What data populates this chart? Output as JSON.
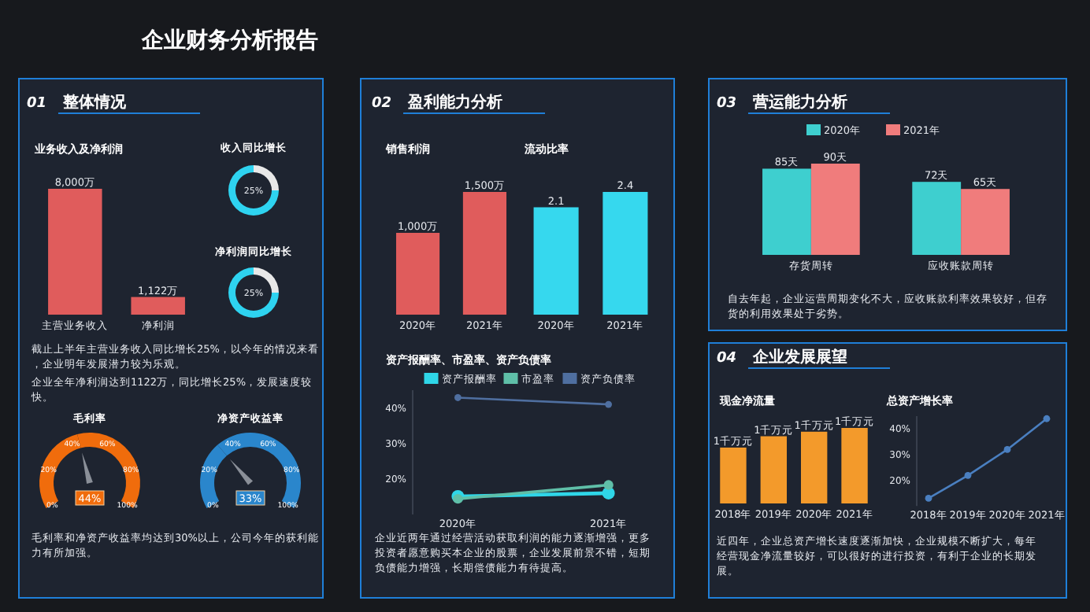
{
  "chart_data": [
    {
      "type": "other",
      "title": "企业财务分析报告"
    },
    {
      "type": "bar",
      "title": "业务收入及净利润",
      "categories": [
        "主营业务收入",
        "净利润"
      ],
      "values": [
        8000,
        1122
      ],
      "value_labels": [
        "8,000万",
        "1,122万"
      ],
      "color": "#e05c5c",
      "annotations": [
        "01",
        "整体情况",
        "截止上半年主营业务收入同比增长25%，以今年的情况来看，企业明年发展潜力较为乐观。",
        "企业全年净利润达到1122万，同比增长25%，发展速度较快。"
      ]
    },
    {
      "type": "donut",
      "title": "收入同比增长",
      "categories": [
        null,
        null
      ],
      "values": [
        25,
        75
      ],
      "colors": [
        "#e8e8e8",
        "#2ed3f0"
      ],
      "annotations": [
        "25%"
      ]
    },
    {
      "type": "donut",
      "title": "净利润同比增长",
      "categories": [
        null,
        null
      ],
      "values": [
        25,
        75
      ],
      "colors": [
        "#e8e8e8",
        "#2ed3f0"
      ],
      "annotations": [
        "25%"
      ]
    },
    {
      "type": "donut",
      "title": "毛利率",
      "categories": [
        null,
        null
      ],
      "values": [
        44,
        56
      ],
      "colors": [
        "#f06c0c",
        "#f06c0c"
      ],
      "annotations": [
        "44%",
        "0%",
        "20%",
        "40%",
        "60%",
        "80%",
        "100%"
      ]
    },
    {
      "type": "donut",
      "title": "净资产收益率",
      "categories": [
        null,
        null
      ],
      "values": [
        33,
        67
      ],
      "colors": [
        "#2a86cc",
        "#2a86cc"
      ],
      "annotations": [
        "33%",
        "0%",
        "20%",
        "40%",
        "60%",
        "80%",
        "100%",
        "毛利率和净资产收益率均达到30%以上，公司今年的获利能力有所加强。"
      ]
    },
    {
      "type": "bar",
      "title": "销售利润",
      "categories": [
        "2020年",
        "2021年"
      ],
      "values": [
        1000,
        1500
      ],
      "value_labels": [
        "1,000万",
        "1,500万"
      ],
      "color": "#e05c5c",
      "annotations": [
        "02",
        "盈利能力分析"
      ]
    },
    {
      "type": "bar",
      "title": "流动比率",
      "categories": [
        "2020年",
        "2021年"
      ],
      "values": [
        2.1,
        2.4
      ],
      "data_labels": true,
      "color": "#36d8ee"
    },
    {
      "type": "line",
      "title": "资产报酬率、市盈率、资产负债率",
      "categories": [
        "2020年",
        "2021年"
      ],
      "ylim": [
        10,
        45
      ],
      "yticks": [
        {
          "value": 20,
          "label": "20%"
        },
        {
          "value": 30,
          "label": "30%"
        },
        {
          "value": 40,
          "label": "40%"
        }
      ],
      "legend": "top",
      "marker": "circle",
      "series": [
        {
          "name": "资产报酬率",
          "color": "#2fd6e8",
          "values": [
            15.1,
            16
          ]
        },
        {
          "name": "市盈率",
          "color": "#5fbfa8",
          "values": [
            14.4,
            18.3
          ]
        },
        {
          "name": "资产负债率",
          "color": "#4f6fa0",
          "values": [
            42.9,
            41
          ]
        }
      ],
      "annotations": [
        "企业近两年通过经营活动获取利润的能力逐渐增强，更多投资者愿意购买本企业的股票，企业发展前景不错，短期负债能力增强，长期偿债能力有待提高。"
      ]
    },
    {
      "type": "bar",
      "categories": [
        "存货周转",
        "应收账款周转"
      ],
      "legend": "top",
      "series": [
        {
          "name": "2020年",
          "color": "#3ecfcf",
          "values": [
            85,
            72
          ],
          "value_labels": [
            "85天",
            "72天"
          ]
        },
        {
          "name": "2021年",
          "color": "#f07c7c",
          "values": [
            90,
            65
          ],
          "value_labels": [
            "90天",
            "65天"
          ]
        }
      ],
      "annotations": [
        "03",
        "营运能力分析",
        "自去年起，企业运营周期变化不大，应收账款利率效果较好，但存货的利用效果处于劣势。"
      ]
    },
    {
      "type": "bar",
      "title": "现金净流量",
      "categories": [
        "2018年",
        "2019年",
        "2020年",
        "2021年"
      ],
      "values": [
        0.74,
        0.89,
        0.95,
        1
      ],
      "value_labels": [
        "1千万元",
        "1千万元",
        "1千万元",
        "1千万元"
      ],
      "color": "#f39a2b",
      "annotations": [
        "04",
        "企业发展展望"
      ]
    },
    {
      "type": "line",
      "title": "总资产增长率",
      "categories": [
        "2018年",
        "2019年",
        "2020年",
        "2021年"
      ],
      "values": [
        13,
        21.9,
        32,
        44
      ],
      "color": "#4a7fc0",
      "marker": "circle",
      "ylim": [
        10,
        45
      ],
      "yticks": [
        {
          "value": 20,
          "label": "20%"
        },
        {
          "value": 30,
          "label": "30%"
        },
        {
          "value": 40,
          "label": "40%"
        }
      ],
      "annotations": [
        "近四年，企业总资产增长速度逐渐加快，企业规模不断扩大，每年经营现金净流量较好，可以很好的进行投资，有利于企业的长期发展。"
      ]
    }
  ]
}
